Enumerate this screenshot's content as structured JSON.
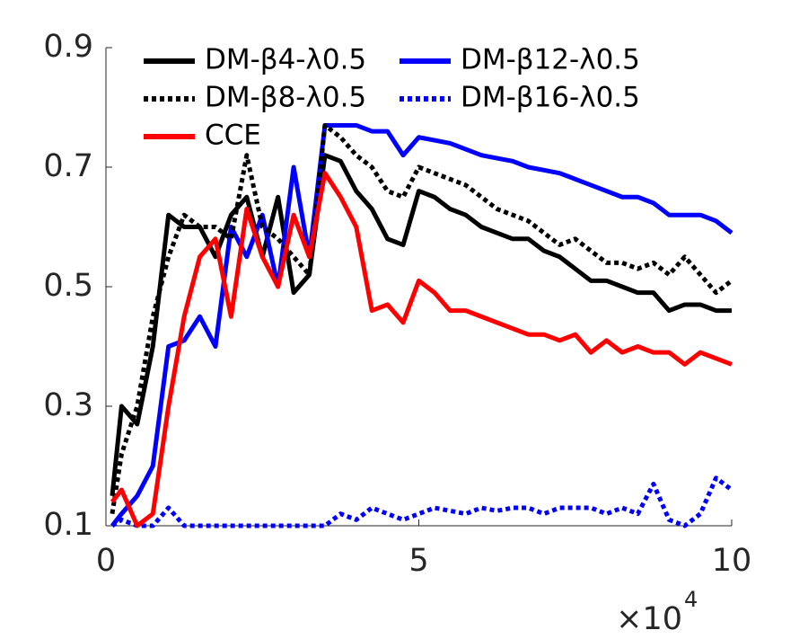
{
  "chart_data": {
    "type": "line",
    "x_multiplier": {
      "base": "×10",
      "exponent": "4"
    },
    "x": [
      0.1,
      0.25,
      0.5,
      0.75,
      1,
      1.25,
      1.5,
      1.75,
      2,
      2.25,
      2.5,
      2.75,
      3,
      3.25,
      3.5,
      3.75,
      4,
      4.25,
      4.5,
      4.75,
      5,
      5.25,
      5.5,
      5.75,
      6,
      6.25,
      6.5,
      6.75,
      7,
      7.25,
      7.5,
      7.75,
      8,
      8.25,
      8.5,
      8.75,
      9,
      9.25,
      9.5,
      9.75,
      10
    ],
    "series": [
      {
        "name": "DM-β4-λ0.5",
        "color": "#000000",
        "dash": false,
        "values": [
          0.15,
          0.3,
          0.27,
          0.4,
          0.62,
          0.6,
          0.6,
          0.55,
          0.62,
          0.65,
          0.55,
          0.65,
          0.49,
          0.52,
          0.72,
          0.71,
          0.66,
          0.63,
          0.58,
          0.57,
          0.66,
          0.65,
          0.63,
          0.62,
          0.6,
          0.59,
          0.58,
          0.58,
          0.56,
          0.55,
          0.53,
          0.51,
          0.51,
          0.5,
          0.49,
          0.49,
          0.46,
          0.47,
          0.47,
          0.46,
          0.46
        ]
      },
      {
        "name": "DM-β12-λ0.5",
        "color": "#0000ff",
        "dash": false,
        "values": [
          0.1,
          0.12,
          0.15,
          0.2,
          0.4,
          0.41,
          0.45,
          0.4,
          0.6,
          0.55,
          0.62,
          0.5,
          0.7,
          0.55,
          0.77,
          0.77,
          0.77,
          0.76,
          0.76,
          0.72,
          0.75,
          0.745,
          0.74,
          0.73,
          0.72,
          0.715,
          0.71,
          0.7,
          0.695,
          0.69,
          0.68,
          0.67,
          0.66,
          0.65,
          0.65,
          0.64,
          0.62,
          0.62,
          0.62,
          0.61,
          0.59
        ]
      },
      {
        "name": "DM-β8-λ0.5",
        "color": "#000000",
        "dash": true,
        "values": [
          0.12,
          0.22,
          0.3,
          0.45,
          0.55,
          0.62,
          0.6,
          0.6,
          0.58,
          0.72,
          0.6,
          0.58,
          0.55,
          0.52,
          0.77,
          0.75,
          0.72,
          0.7,
          0.66,
          0.65,
          0.7,
          0.69,
          0.68,
          0.67,
          0.65,
          0.63,
          0.62,
          0.61,
          0.59,
          0.57,
          0.58,
          0.56,
          0.54,
          0.54,
          0.53,
          0.54,
          0.52,
          0.55,
          0.52,
          0.49,
          0.51
        ]
      },
      {
        "name": "DM-β16-λ0.5",
        "color": "#0000ff",
        "dash": true,
        "values": [
          0.1,
          0.11,
          0.1,
          0.1,
          0.13,
          0.1,
          0.1,
          0.1,
          0.1,
          0.1,
          0.1,
          0.1,
          0.1,
          0.1,
          0.1,
          0.12,
          0.11,
          0.13,
          0.12,
          0.11,
          0.12,
          0.13,
          0.125,
          0.12,
          0.13,
          0.125,
          0.13,
          0.13,
          0.12,
          0.13,
          0.13,
          0.13,
          0.12,
          0.13,
          0.12,
          0.17,
          0.11,
          0.1,
          0.12,
          0.18,
          0.16
        ]
      },
      {
        "name": "CCE",
        "color": "#ff0000",
        "dash": false,
        "values": [
          0.14,
          0.16,
          0.1,
          0.12,
          0.3,
          0.45,
          0.55,
          0.58,
          0.45,
          0.63,
          0.55,
          0.5,
          0.62,
          0.55,
          0.69,
          0.65,
          0.6,
          0.46,
          0.47,
          0.44,
          0.51,
          0.49,
          0.46,
          0.46,
          0.45,
          0.44,
          0.43,
          0.42,
          0.42,
          0.41,
          0.42,
          0.39,
          0.41,
          0.39,
          0.4,
          0.39,
          0.39,
          0.37,
          0.39,
          0.38,
          0.37
        ]
      }
    ],
    "xlim": [
      0,
      10
    ],
    "xticks": [
      0,
      5,
      10
    ],
    "ylim": [
      0.1,
      0.9
    ],
    "yticks": [
      0.1,
      0.3,
      0.5,
      0.7,
      0.9
    ],
    "grid": false,
    "legend_location": "north",
    "legend_columns": 2
  }
}
